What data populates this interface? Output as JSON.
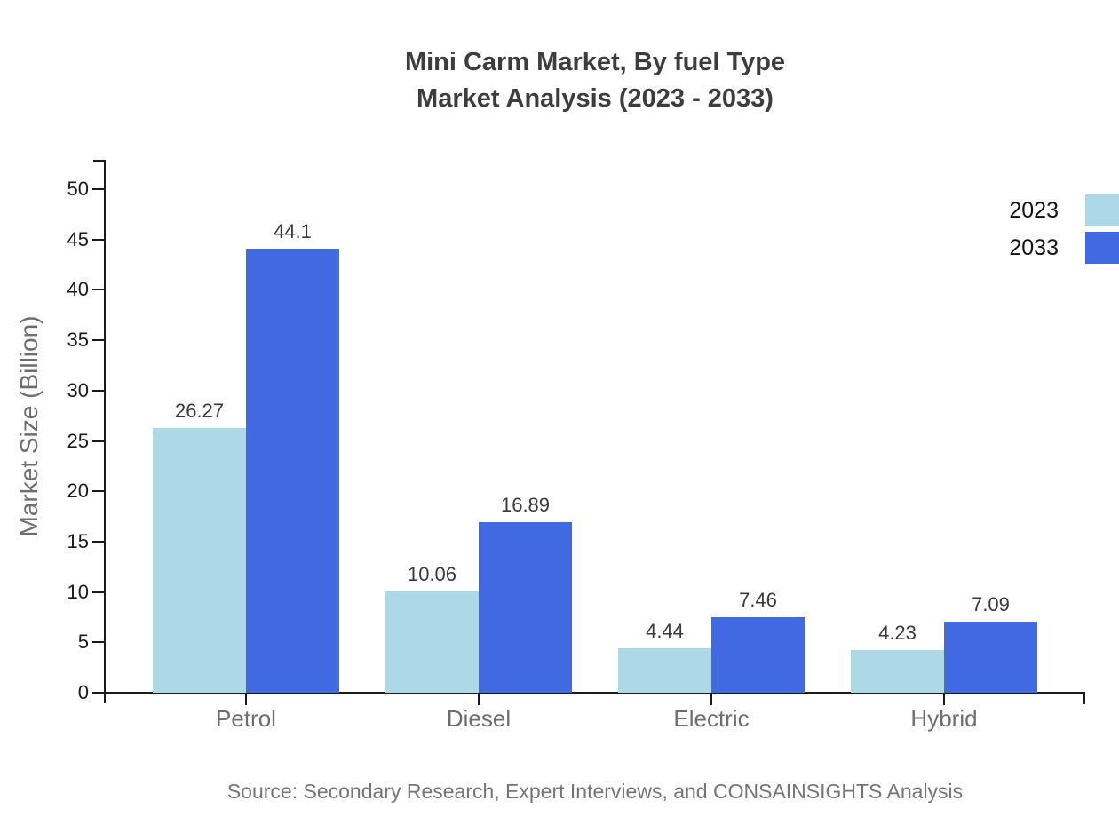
{
  "title": {
    "line1": "Mini Carm Market, By fuel Type",
    "line2": "Market Analysis (2023 - 2033)"
  },
  "source": "Source: Secondary Research, Expert Interviews, and CONSAINSIGHTS Analysis",
  "colors": {
    "series_2023": "#ADD8E6",
    "series_2033": "#4169E1",
    "axis": "#1a1a1a",
    "muted_text": "#6e6e6e"
  },
  "chart_data": {
    "type": "bar",
    "title": "Mini Carm Market, By fuel Type Market Analysis (2023 - 2033)",
    "categories": [
      "Petrol",
      "Diesel",
      "Electric",
      "Hybrid"
    ],
    "series": [
      {
        "name": "2023",
        "color": "#ADD8E6",
        "values": [
          26.27,
          10.06,
          4.44,
          4.23
        ]
      },
      {
        "name": "2033",
        "color": "#4169E1",
        "values": [
          44.1,
          16.89,
          7.46,
          7.09
        ]
      }
    ],
    "xlabel": "",
    "ylabel": "Market Size (Billion)",
    "ylim": [
      0,
      50
    ],
    "ytick_step": 5,
    "yticks": [
      0,
      5,
      10,
      15,
      20,
      25,
      30,
      35,
      40,
      45,
      50
    ],
    "value_labels_shown": true,
    "grid": false,
    "legend_position": "top-right"
  }
}
